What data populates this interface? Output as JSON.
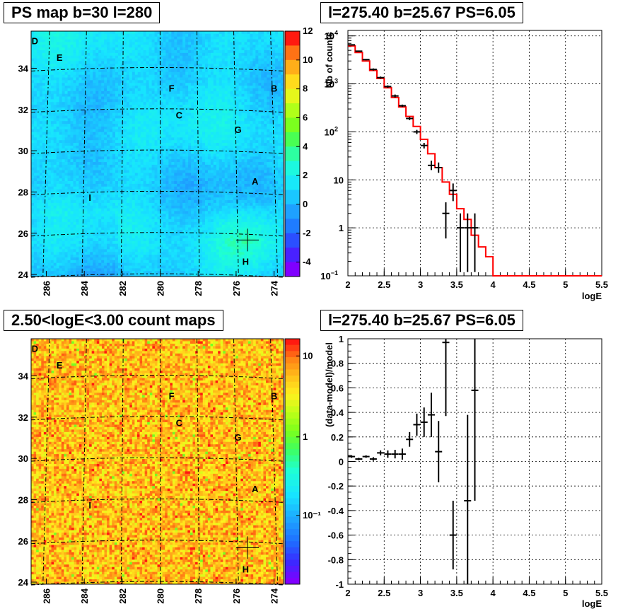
{
  "panels": {
    "map1_title": "PS map b=30 l=280",
    "spec_title": "l=275.40 b=25.67 PS=6.05",
    "map2_title": "2.50<logE<3.00 count maps",
    "resid_title": "l=275.40 b=25.67 PS=6.05"
  },
  "chart_data": [
    {
      "type": "heatmap",
      "title": "PS map b=30 l=280",
      "xlim": [
        286.8,
        273.5
      ],
      "ylim": [
        23.9,
        35.8
      ],
      "x_ticks": [
        "286",
        "284",
        "282",
        "280",
        "278",
        "276",
        "274"
      ],
      "y_ticks": [
        "24",
        "26",
        "28",
        "30",
        "32",
        "34"
      ],
      "colorbar": {
        "ticks": [
          "12",
          "10",
          "8",
          "6",
          "4",
          "2",
          "0",
          "-2",
          "-4"
        ],
        "range": [
          -5,
          12
        ]
      },
      "base_value": 0.5,
      "sources": [
        {
          "label": "D",
          "l": 286.6,
          "b": 35.3
        },
        {
          "label": "E",
          "l": 285.3,
          "b": 34.5
        },
        {
          "label": "F",
          "l": 279.4,
          "b": 33.0
        },
        {
          "label": "B",
          "l": 274.0,
          "b": 33.0
        },
        {
          "label": "C",
          "l": 279.0,
          "b": 31.7
        },
        {
          "label": "G",
          "l": 275.9,
          "b": 31.0
        },
        {
          "label": "A",
          "l": 275.0,
          "b": 28.5
        },
        {
          "label": "I",
          "l": 283.7,
          "b": 27.7
        },
        {
          "label": "H",
          "l": 275.5,
          "b": 24.6
        }
      ],
      "marker": {
        "l": 275.4,
        "b": 25.67
      },
      "colors": {
        "low": "#8000ff",
        "high": "#ff0000"
      }
    },
    {
      "type": "line",
      "title": "l=275.40 b=25.67 PS=6.05",
      "xlabel": "logE",
      "ylabel": "Nb of counts",
      "xlim": [
        2,
        5.5
      ],
      "ylim": [
        0.1,
        13000
      ],
      "yscale": "log",
      "x_ticks": [
        "2",
        "2.5",
        "3",
        "3.5",
        "4",
        "4.5",
        "5",
        "5.5"
      ],
      "y_ticks": [
        {
          "v": 10000,
          "b": "10",
          "e": "4"
        },
        {
          "v": 1000,
          "b": "10",
          "e": "3"
        },
        {
          "v": 100,
          "b": "10",
          "e": "2"
        },
        {
          "v": 10,
          "b": "10",
          "e": ""
        },
        {
          "v": 1,
          "b": "1",
          "e": ""
        },
        {
          "v": 0.1,
          "b": "10",
          "e": "−1"
        }
      ],
      "grid": true,
      "series": [
        {
          "type": "step",
          "color": "#ff0000",
          "edges": [
            2.0,
            2.1,
            2.2,
            2.3,
            2.4,
            2.5,
            2.6,
            2.7,
            2.8,
            2.9,
            3.0,
            3.1,
            3.2,
            3.3,
            3.4,
            3.5,
            3.6,
            3.7,
            3.8,
            3.9,
            4.0,
            5.5
          ],
          "values": [
            6200,
            4500,
            3000,
            1900,
            1300,
            830,
            520,
            330,
            210,
            130,
            70,
            35,
            18,
            9,
            5,
            2.5,
            1.5,
            0.7,
            0.4,
            0.25,
            0.1
          ]
        },
        {
          "type": "points",
          "color": "#000000",
          "points": [
            {
              "x": 2.05,
              "y": 6500,
              "lo": 6300,
              "hi": 6700
            },
            {
              "x": 2.15,
              "y": 4800,
              "lo": 4650,
              "hi": 4950
            },
            {
              "x": 2.25,
              "y": 3200,
              "lo": 3100,
              "hi": 3300
            },
            {
              "x": 2.35,
              "y": 2000,
              "lo": 1900,
              "hi": 2100
            },
            {
              "x": 2.45,
              "y": 1350,
              "lo": 1280,
              "hi": 1420
            },
            {
              "x": 2.55,
              "y": 880,
              "lo": 830,
              "hi": 930
            },
            {
              "x": 2.65,
              "y": 560,
              "lo": 520,
              "hi": 600
            },
            {
              "x": 2.75,
              "y": 350,
              "lo": 330,
              "hi": 370
            },
            {
              "x": 2.85,
              "y": 190,
              "lo": 176,
              "hi": 204
            },
            {
              "x": 2.95,
              "y": 100,
              "lo": 90,
              "hi": 110
            },
            {
              "x": 3.05,
              "y": 52,
              "lo": 45,
              "hi": 59
            },
            {
              "x": 3.15,
              "y": 20,
              "lo": 16,
              "hi": 25
            },
            {
              "x": 3.25,
              "y": 18,
              "lo": 14,
              "hi": 23
            },
            {
              "x": 3.35,
              "y": 2,
              "lo": 0.6,
              "hi": 3.4
            },
            {
              "x": 3.45,
              "y": 6,
              "lo": 3.6,
              "hi": 8.4
            },
            {
              "x": 3.55,
              "y": 1,
              "lo": 0.12,
              "hi": 2
            },
            {
              "x": 3.65,
              "y": 1,
              "lo": 0.12,
              "hi": 2
            },
            {
              "x": 3.75,
              "y": 1,
              "lo": 0.12,
              "hi": 2
            }
          ]
        }
      ]
    },
    {
      "type": "heatmap",
      "title": "2.50<logE<3.00 count maps",
      "xlim": [
        286.8,
        273.5
      ],
      "ylim": [
        23.9,
        35.8
      ],
      "x_ticks": [
        "286",
        "284",
        "282",
        "280",
        "278",
        "276",
        "274"
      ],
      "y_ticks": [
        "24",
        "26",
        "28",
        "30",
        "32",
        "34"
      ],
      "colorbar": {
        "ticks": [
          "10",
          "1",
          "10⁻¹"
        ],
        "scale": "log"
      },
      "sources": [
        {
          "label": "D",
          "l": 286.6,
          "b": 35.3
        },
        {
          "label": "E",
          "l": 285.3,
          "b": 34.5
        },
        {
          "label": "F",
          "l": 279.4,
          "b": 33.0
        },
        {
          "label": "B",
          "l": 274.0,
          "b": 33.0
        },
        {
          "label": "C",
          "l": 279.0,
          "b": 31.7
        },
        {
          "label": "G",
          "l": 275.9,
          "b": 31.0
        },
        {
          "label": "A",
          "l": 275.0,
          "b": 28.5
        },
        {
          "label": "I",
          "l": 283.7,
          "b": 27.7
        },
        {
          "label": "H",
          "l": 275.5,
          "b": 24.6
        }
      ],
      "marker": {
        "l": 275.4,
        "b": 25.67
      }
    },
    {
      "type": "scatter",
      "title": "l=275.40 b=25.67 PS=6.05",
      "xlabel": "logE",
      "ylabel": "(data-model)/model",
      "xlim": [
        2,
        5.5
      ],
      "ylim": [
        -1,
        1
      ],
      "x_ticks": [
        "2",
        "2.5",
        "3",
        "3.5",
        "4",
        "4.5",
        "5",
        "5.5"
      ],
      "y_ticks": [
        "1",
        "0.8",
        "0.6",
        "0.4",
        "0.2",
        "0",
        "-0.2",
        "-0.4",
        "-0.6",
        "-0.8",
        "-1"
      ],
      "grid": true,
      "points": [
        {
          "x": 2.05,
          "y": 0.04,
          "err": 0.01
        },
        {
          "x": 2.15,
          "y": 0.02,
          "err": 0.01
        },
        {
          "x": 2.25,
          "y": 0.04,
          "err": 0.01
        },
        {
          "x": 2.35,
          "y": 0.02,
          "err": 0.015
        },
        {
          "x": 2.45,
          "y": 0.07,
          "err": 0.02
        },
        {
          "x": 2.55,
          "y": 0.06,
          "err": 0.03
        },
        {
          "x": 2.65,
          "y": 0.06,
          "err": 0.035
        },
        {
          "x": 2.75,
          "y": 0.06,
          "err": 0.045
        },
        {
          "x": 2.85,
          "y": 0.18,
          "err": 0.06
        },
        {
          "x": 2.95,
          "y": 0.3,
          "err": 0.09
        },
        {
          "x": 3.05,
          "y": 0.32,
          "err": 0.12
        },
        {
          "x": 3.15,
          "y": 0.38,
          "err": 0.18
        },
        {
          "x": 3.25,
          "y": 0.08,
          "err": 0.25
        },
        {
          "x": 3.35,
          "y": 0.97,
          "err": 0.6
        },
        {
          "x": 3.45,
          "y": -0.6,
          "err": 0.28
        },
        {
          "x": 3.65,
          "y": -0.32,
          "err": 0.7
        },
        {
          "x": 3.75,
          "y": 0.58,
          "err": 0.9
        }
      ]
    }
  ]
}
